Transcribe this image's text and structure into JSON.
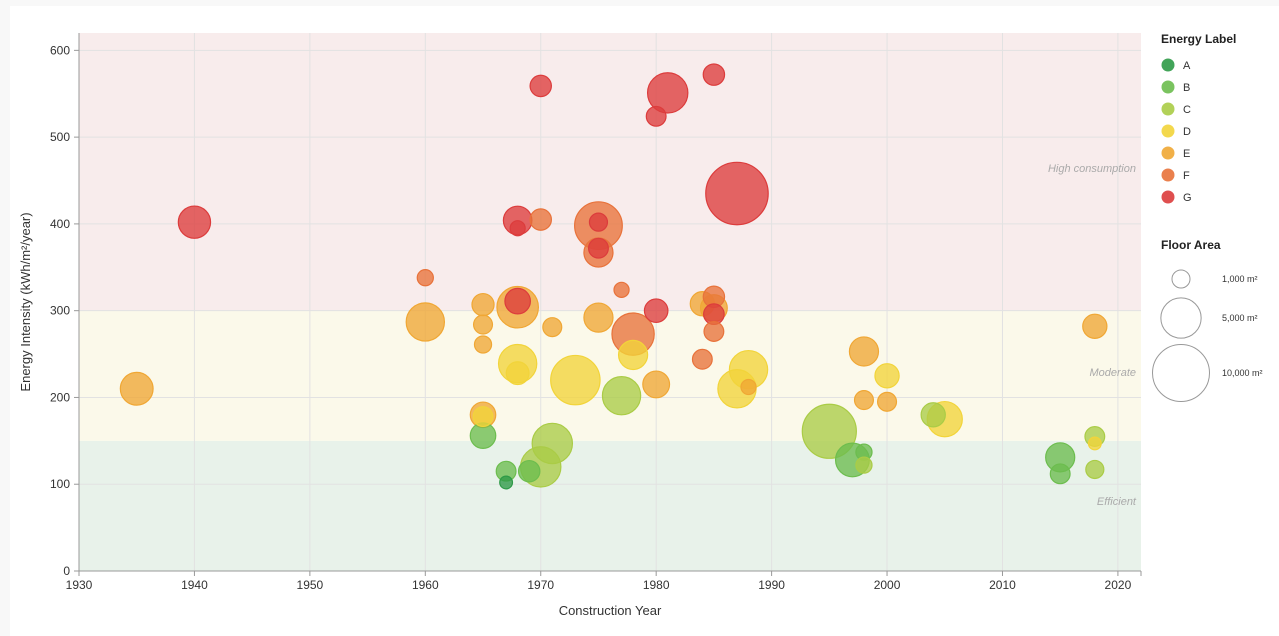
{
  "chart_data": {
    "type": "scatter",
    "xlabel": "Construction Year",
    "ylabel": "Energy Intensity (kWh/m²/year)",
    "xlim": [
      1930,
      2022
    ],
    "ylim": [
      0,
      620
    ],
    "x_ticks": [
      1930,
      1940,
      1950,
      1960,
      1970,
      1980,
      1990,
      2000,
      2010,
      2020
    ],
    "y_ticks": [
      0,
      100,
      200,
      300,
      400,
      500,
      600
    ],
    "grid": true,
    "bands": [
      {
        "label": "Efficient",
        "from": 0,
        "to": 150,
        "color": "#e8f2ea"
      },
      {
        "label": "Moderate",
        "from": 150,
        "to": 300,
        "color": "#fbf9ea"
      },
      {
        "label": "High consumption",
        "from": 300,
        "to": 620,
        "color": "#f8ecec"
      }
    ],
    "color_legend": {
      "title": "Energy Label",
      "entries": [
        {
          "label": "A",
          "color": "#2e9a47"
        },
        {
          "label": "B",
          "color": "#6cbd4e"
        },
        {
          "label": "C",
          "color": "#aacc46"
        },
        {
          "label": "D",
          "color": "#f2d43a"
        },
        {
          "label": "E",
          "color": "#f0a734"
        },
        {
          "label": "F",
          "color": "#e8723a"
        },
        {
          "label": "G",
          "color": "#dc3c3c"
        }
      ]
    },
    "size_legend": {
      "title": "Floor Area",
      "entries": [
        {
          "label": "1,000 m²",
          "area": 1000
        },
        {
          "label": "5,000 m²",
          "area": 5000
        },
        {
          "label": "10,000 m²",
          "area": 10000
        }
      ]
    },
    "points": [
      {
        "year": 1935,
        "intensity": 210,
        "area": 3300,
        "label": "E"
      },
      {
        "year": 1940,
        "intensity": 402,
        "area": 3200,
        "label": "G"
      },
      {
        "year": 1960,
        "intensity": 338,
        "area": 800,
        "label": "F"
      },
      {
        "year": 1960,
        "intensity": 287,
        "area": 4500,
        "label": "E"
      },
      {
        "year": 1965,
        "intensity": 307,
        "area": 1500,
        "label": "E"
      },
      {
        "year": 1965,
        "intensity": 284,
        "area": 1100,
        "label": "E"
      },
      {
        "year": 1965,
        "intensity": 261,
        "area": 900,
        "label": "E"
      },
      {
        "year": 1965,
        "intensity": 180,
        "area": 2000,
        "label": "E"
      },
      {
        "year": 1965,
        "intensity": 178,
        "area": 1200,
        "label": "D"
      },
      {
        "year": 1965,
        "intensity": 156,
        "area": 2000,
        "label": "B"
      },
      {
        "year": 1967,
        "intensity": 115,
        "area": 1200,
        "label": "B"
      },
      {
        "year": 1967,
        "intensity": 102,
        "area": 500,
        "label": "A"
      },
      {
        "year": 1968,
        "intensity": 404,
        "area": 2500,
        "label": "G"
      },
      {
        "year": 1968,
        "intensity": 395,
        "area": 700,
        "label": "G"
      },
      {
        "year": 1968,
        "intensity": 304,
        "area": 5300,
        "label": "E"
      },
      {
        "year": 1968,
        "intensity": 311,
        "area": 2000,
        "label": "G"
      },
      {
        "year": 1968,
        "intensity": 239,
        "area": 4500,
        "label": "D"
      },
      {
        "year": 1968,
        "intensity": 228,
        "area": 1600,
        "label": "D"
      },
      {
        "year": 1969,
        "intensity": 115,
        "area": 1400,
        "label": "B"
      },
      {
        "year": 1970,
        "intensity": 559,
        "area": 1400,
        "label": "G"
      },
      {
        "year": 1970,
        "intensity": 405,
        "area": 1400,
        "label": "F"
      },
      {
        "year": 1970,
        "intensity": 120,
        "area": 5000,
        "label": "C"
      },
      {
        "year": 1971,
        "intensity": 147,
        "area": 5000,
        "label": "C"
      },
      {
        "year": 1971,
        "intensity": 281,
        "area": 1100,
        "label": "E"
      },
      {
        "year": 1973,
        "intensity": 220,
        "area": 7500,
        "label": "D"
      },
      {
        "year": 1975,
        "intensity": 398,
        "area": 7000,
        "label": "F"
      },
      {
        "year": 1975,
        "intensity": 402,
        "area": 1000,
        "label": "G"
      },
      {
        "year": 1975,
        "intensity": 372,
        "area": 1200,
        "label": "G"
      },
      {
        "year": 1975,
        "intensity": 367,
        "area": 2600,
        "label": "F"
      },
      {
        "year": 1975,
        "intensity": 292,
        "area": 2600,
        "label": "E"
      },
      {
        "year": 1977,
        "intensity": 324,
        "area": 700,
        "label": "F"
      },
      {
        "year": 1977,
        "intensity": 202,
        "area": 4500,
        "label": "C"
      },
      {
        "year": 1978,
        "intensity": 273,
        "area": 5500,
        "label": "F"
      },
      {
        "year": 1978,
        "intensity": 249,
        "area": 2600,
        "label": "D"
      },
      {
        "year": 1980,
        "intensity": 524,
        "area": 1200,
        "label": "G"
      },
      {
        "year": 1980,
        "intensity": 300,
        "area": 1700,
        "label": "G"
      },
      {
        "year": 1980,
        "intensity": 215,
        "area": 2200,
        "label": "E"
      },
      {
        "year": 1981,
        "intensity": 551,
        "area": 5000,
        "label": "G"
      },
      {
        "year": 1984,
        "intensity": 308,
        "area": 1800,
        "label": "E"
      },
      {
        "year": 1984,
        "intensity": 244,
        "area": 1200,
        "label": "F"
      },
      {
        "year": 1985,
        "intensity": 572,
        "area": 1400,
        "label": "G"
      },
      {
        "year": 1985,
        "intensity": 316,
        "area": 1400,
        "label": "F"
      },
      {
        "year": 1985,
        "intensity": 303,
        "area": 2200,
        "label": "E"
      },
      {
        "year": 1985,
        "intensity": 296,
        "area": 1300,
        "label": "G"
      },
      {
        "year": 1985,
        "intensity": 276,
        "area": 1200,
        "label": "F"
      },
      {
        "year": 1987,
        "intensity": 435,
        "area": 12000,
        "label": "G"
      },
      {
        "year": 1987,
        "intensity": 210,
        "area": 4500,
        "label": "D"
      },
      {
        "year": 1988,
        "intensity": 232,
        "area": 4500,
        "label": "D"
      },
      {
        "year": 1988,
        "intensity": 212,
        "area": 700,
        "label": "E"
      },
      {
        "year": 1995,
        "intensity": 161,
        "area": 9000,
        "label": "C"
      },
      {
        "year": 1997,
        "intensity": 128,
        "area": 3500,
        "label": "B"
      },
      {
        "year": 1998,
        "intensity": 253,
        "area": 2600,
        "label": "E"
      },
      {
        "year": 1998,
        "intensity": 197,
        "area": 1100,
        "label": "E"
      },
      {
        "year": 1998,
        "intensity": 137,
        "area": 800,
        "label": "B"
      },
      {
        "year": 1998,
        "intensity": 122,
        "area": 800,
        "label": "C"
      },
      {
        "year": 2000,
        "intensity": 225,
        "area": 1800,
        "label": "D"
      },
      {
        "year": 2000,
        "intensity": 195,
        "area": 1100,
        "label": "E"
      },
      {
        "year": 2004,
        "intensity": 180,
        "area": 1800,
        "label": "C"
      },
      {
        "year": 2005,
        "intensity": 175,
        "area": 3800,
        "label": "D"
      },
      {
        "year": 2015,
        "intensity": 131,
        "area": 2600,
        "label": "B"
      },
      {
        "year": 2015,
        "intensity": 112,
        "area": 1200,
        "label": "B"
      },
      {
        "year": 2018,
        "intensity": 282,
        "area": 1800,
        "label": "E"
      },
      {
        "year": 2018,
        "intensity": 155,
        "area": 1200,
        "label": "C"
      },
      {
        "year": 2018,
        "intensity": 147,
        "area": 500,
        "label": "D"
      },
      {
        "year": 2018,
        "intensity": 117,
        "area": 1000,
        "label": "C"
      }
    ]
  }
}
